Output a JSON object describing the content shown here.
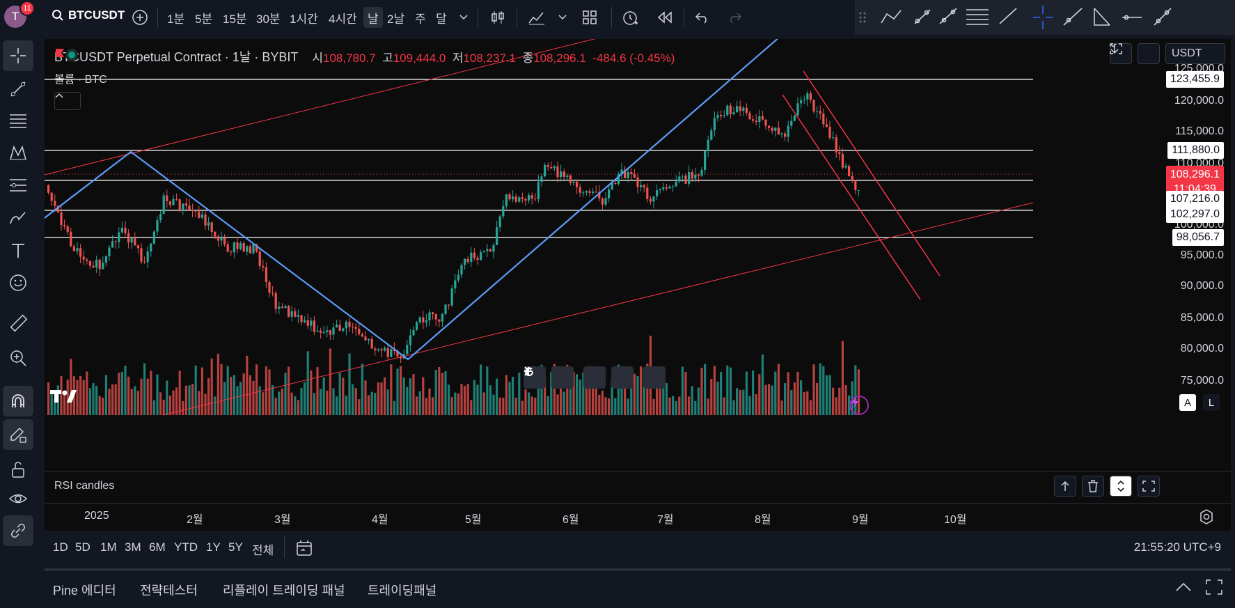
{
  "header": {
    "avatar_letter": "T",
    "notification_count": "11",
    "symbol": "BTCUSDT",
    "timeframes": [
      "1분",
      "5분",
      "15분",
      "30분",
      "1시간",
      "4시간",
      "날",
      "2날",
      "주",
      "달"
    ],
    "active_timeframe": "날"
  },
  "legend": {
    "title": "BTCUSDT Perpetual Contract · 1날 · BYBIT",
    "open_label": "시",
    "open": "108,780.7",
    "high_label": "고",
    "high": "109,444.0",
    "low_label": "저",
    "low": "108,237.1",
    "close_label": "종",
    "close": "108,296.1",
    "change": "-484.6 (-0.45%)",
    "volume_label": "볼륨 · BTC"
  },
  "currency": "USDT",
  "price_axis": [
    "125,000.0",
    "120,000.0",
    "115,000.0",
    "110,000.0",
    "100,000.0",
    "95,000.0",
    "90,000.0",
    "85,000.0",
    "80,000.0",
    "75,000.0"
  ],
  "price_tags": {
    "level1": "123,455.9",
    "level2": "111,880.0",
    "current_price": "108,296.1",
    "countdown": "11:04:39",
    "level3": "107,216.0",
    "level4": "102,297.0",
    "level5": "98,056.7"
  },
  "scale_buttons": {
    "auto": "A",
    "log": "L"
  },
  "rsi": {
    "title": "RSI candles"
  },
  "time_axis": [
    "2025",
    "2월",
    "3월",
    "4월",
    "5월",
    "6월",
    "7월",
    "8월",
    "9월",
    "10월"
  ],
  "ranges": [
    "1D",
    "5D",
    "1M",
    "3M",
    "6M",
    "YTD",
    "1Y",
    "5Y",
    "전체"
  ],
  "clock": "21:55:20 UTC+9",
  "bottom_tabs": [
    "Pine 에디터",
    "전략테스터",
    "리플레이 트레이딩 패널",
    "트레이딩패널"
  ],
  "colors": {
    "up": "#26a69a",
    "down": "#ef5350",
    "blue_line": "#5b9cf6",
    "red_line": "#f23645",
    "background": "#0c0c0c"
  }
}
